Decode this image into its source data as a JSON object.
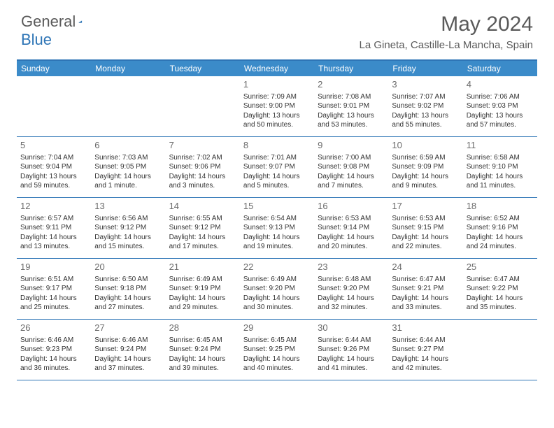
{
  "logo": {
    "text1": "General",
    "text2": "Blue"
  },
  "title": "May 2024",
  "location": "La Gineta, Castille-La Mancha, Spain",
  "colors": {
    "header_bar": "#3b8bc9",
    "border": "#2e75b6",
    "text_gray": "#5a5a5a",
    "body_text": "#333333",
    "background": "#ffffff"
  },
  "fonts": {
    "title_size": 30,
    "location_size": 15,
    "weekday_size": 12,
    "daynum_size": 13,
    "body_size": 10
  },
  "weekdays": [
    "Sunday",
    "Monday",
    "Tuesday",
    "Wednesday",
    "Thursday",
    "Friday",
    "Saturday"
  ],
  "weeks": [
    [
      null,
      null,
      null,
      {
        "n": "1",
        "sr": "7:09 AM",
        "ss": "9:00 PM",
        "dl": "13 hours and 50 minutes."
      },
      {
        "n": "2",
        "sr": "7:08 AM",
        "ss": "9:01 PM",
        "dl": "13 hours and 53 minutes."
      },
      {
        "n": "3",
        "sr": "7:07 AM",
        "ss": "9:02 PM",
        "dl": "13 hours and 55 minutes."
      },
      {
        "n": "4",
        "sr": "7:06 AM",
        "ss": "9:03 PM",
        "dl": "13 hours and 57 minutes."
      }
    ],
    [
      {
        "n": "5",
        "sr": "7:04 AM",
        "ss": "9:04 PM",
        "dl": "13 hours and 59 minutes."
      },
      {
        "n": "6",
        "sr": "7:03 AM",
        "ss": "9:05 PM",
        "dl": "14 hours and 1 minute."
      },
      {
        "n": "7",
        "sr": "7:02 AM",
        "ss": "9:06 PM",
        "dl": "14 hours and 3 minutes."
      },
      {
        "n": "8",
        "sr": "7:01 AM",
        "ss": "9:07 PM",
        "dl": "14 hours and 5 minutes."
      },
      {
        "n": "9",
        "sr": "7:00 AM",
        "ss": "9:08 PM",
        "dl": "14 hours and 7 minutes."
      },
      {
        "n": "10",
        "sr": "6:59 AM",
        "ss": "9:09 PM",
        "dl": "14 hours and 9 minutes."
      },
      {
        "n": "11",
        "sr": "6:58 AM",
        "ss": "9:10 PM",
        "dl": "14 hours and 11 minutes."
      }
    ],
    [
      {
        "n": "12",
        "sr": "6:57 AM",
        "ss": "9:11 PM",
        "dl": "14 hours and 13 minutes."
      },
      {
        "n": "13",
        "sr": "6:56 AM",
        "ss": "9:12 PM",
        "dl": "14 hours and 15 minutes."
      },
      {
        "n": "14",
        "sr": "6:55 AM",
        "ss": "9:12 PM",
        "dl": "14 hours and 17 minutes."
      },
      {
        "n": "15",
        "sr": "6:54 AM",
        "ss": "9:13 PM",
        "dl": "14 hours and 19 minutes."
      },
      {
        "n": "16",
        "sr": "6:53 AM",
        "ss": "9:14 PM",
        "dl": "14 hours and 20 minutes."
      },
      {
        "n": "17",
        "sr": "6:53 AM",
        "ss": "9:15 PM",
        "dl": "14 hours and 22 minutes."
      },
      {
        "n": "18",
        "sr": "6:52 AM",
        "ss": "9:16 PM",
        "dl": "14 hours and 24 minutes."
      }
    ],
    [
      {
        "n": "19",
        "sr": "6:51 AM",
        "ss": "9:17 PM",
        "dl": "14 hours and 25 minutes."
      },
      {
        "n": "20",
        "sr": "6:50 AM",
        "ss": "9:18 PM",
        "dl": "14 hours and 27 minutes."
      },
      {
        "n": "21",
        "sr": "6:49 AM",
        "ss": "9:19 PM",
        "dl": "14 hours and 29 minutes."
      },
      {
        "n": "22",
        "sr": "6:49 AM",
        "ss": "9:20 PM",
        "dl": "14 hours and 30 minutes."
      },
      {
        "n": "23",
        "sr": "6:48 AM",
        "ss": "9:20 PM",
        "dl": "14 hours and 32 minutes."
      },
      {
        "n": "24",
        "sr": "6:47 AM",
        "ss": "9:21 PM",
        "dl": "14 hours and 33 minutes."
      },
      {
        "n": "25",
        "sr": "6:47 AM",
        "ss": "9:22 PM",
        "dl": "14 hours and 35 minutes."
      }
    ],
    [
      {
        "n": "26",
        "sr": "6:46 AM",
        "ss": "9:23 PM",
        "dl": "14 hours and 36 minutes."
      },
      {
        "n": "27",
        "sr": "6:46 AM",
        "ss": "9:24 PM",
        "dl": "14 hours and 37 minutes."
      },
      {
        "n": "28",
        "sr": "6:45 AM",
        "ss": "9:24 PM",
        "dl": "14 hours and 39 minutes."
      },
      {
        "n": "29",
        "sr": "6:45 AM",
        "ss": "9:25 PM",
        "dl": "14 hours and 40 minutes."
      },
      {
        "n": "30",
        "sr": "6:44 AM",
        "ss": "9:26 PM",
        "dl": "14 hours and 41 minutes."
      },
      {
        "n": "31",
        "sr": "6:44 AM",
        "ss": "9:27 PM",
        "dl": "14 hours and 42 minutes."
      },
      null
    ]
  ],
  "labels": {
    "sunrise": "Sunrise:",
    "sunset": "Sunset:",
    "daylight": "Daylight:"
  }
}
